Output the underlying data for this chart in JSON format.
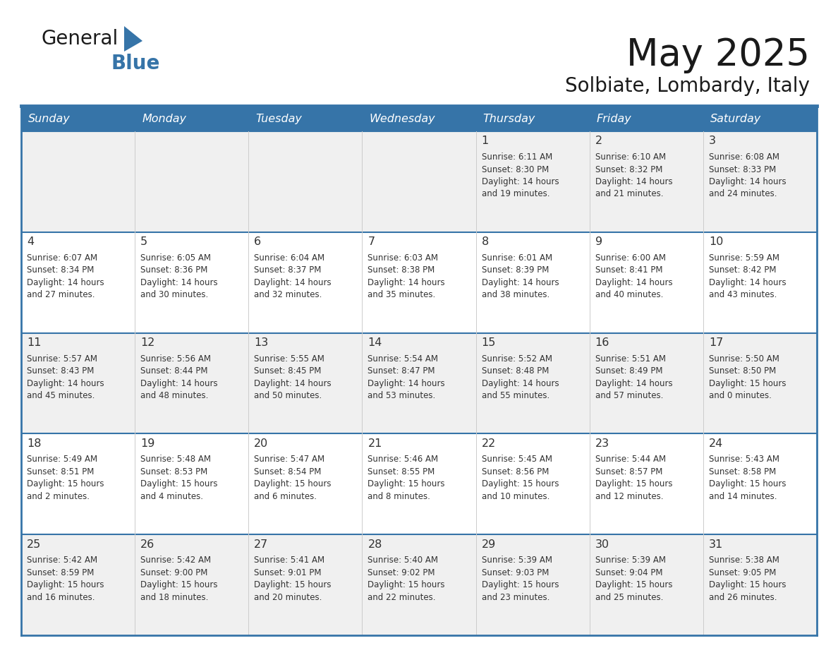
{
  "title": "May 2025",
  "subtitle": "Solbiate, Lombardy, Italy",
  "days_header": [
    "Sunday",
    "Monday",
    "Tuesday",
    "Wednesday",
    "Thursday",
    "Friday",
    "Saturday"
  ],
  "header_bg": "#3674a8",
  "header_text_color": "#FFFFFF",
  "border_color": "#3674a8",
  "text_color": "#333333",
  "row_colors": [
    "#F0F0F0",
    "#FFFFFF"
  ],
  "calendar": [
    [
      {
        "day": "",
        "text": ""
      },
      {
        "day": "",
        "text": ""
      },
      {
        "day": "",
        "text": ""
      },
      {
        "day": "",
        "text": ""
      },
      {
        "day": "1",
        "text": "Sunrise: 6:11 AM\nSunset: 8:30 PM\nDaylight: 14 hours\nand 19 minutes."
      },
      {
        "day": "2",
        "text": "Sunrise: 6:10 AM\nSunset: 8:32 PM\nDaylight: 14 hours\nand 21 minutes."
      },
      {
        "day": "3",
        "text": "Sunrise: 6:08 AM\nSunset: 8:33 PM\nDaylight: 14 hours\nand 24 minutes."
      }
    ],
    [
      {
        "day": "4",
        "text": "Sunrise: 6:07 AM\nSunset: 8:34 PM\nDaylight: 14 hours\nand 27 minutes."
      },
      {
        "day": "5",
        "text": "Sunrise: 6:05 AM\nSunset: 8:36 PM\nDaylight: 14 hours\nand 30 minutes."
      },
      {
        "day": "6",
        "text": "Sunrise: 6:04 AM\nSunset: 8:37 PM\nDaylight: 14 hours\nand 32 minutes."
      },
      {
        "day": "7",
        "text": "Sunrise: 6:03 AM\nSunset: 8:38 PM\nDaylight: 14 hours\nand 35 minutes."
      },
      {
        "day": "8",
        "text": "Sunrise: 6:01 AM\nSunset: 8:39 PM\nDaylight: 14 hours\nand 38 minutes."
      },
      {
        "day": "9",
        "text": "Sunrise: 6:00 AM\nSunset: 8:41 PM\nDaylight: 14 hours\nand 40 minutes."
      },
      {
        "day": "10",
        "text": "Sunrise: 5:59 AM\nSunset: 8:42 PM\nDaylight: 14 hours\nand 43 minutes."
      }
    ],
    [
      {
        "day": "11",
        "text": "Sunrise: 5:57 AM\nSunset: 8:43 PM\nDaylight: 14 hours\nand 45 minutes."
      },
      {
        "day": "12",
        "text": "Sunrise: 5:56 AM\nSunset: 8:44 PM\nDaylight: 14 hours\nand 48 minutes."
      },
      {
        "day": "13",
        "text": "Sunrise: 5:55 AM\nSunset: 8:45 PM\nDaylight: 14 hours\nand 50 minutes."
      },
      {
        "day": "14",
        "text": "Sunrise: 5:54 AM\nSunset: 8:47 PM\nDaylight: 14 hours\nand 53 minutes."
      },
      {
        "day": "15",
        "text": "Sunrise: 5:52 AM\nSunset: 8:48 PM\nDaylight: 14 hours\nand 55 minutes."
      },
      {
        "day": "16",
        "text": "Sunrise: 5:51 AM\nSunset: 8:49 PM\nDaylight: 14 hours\nand 57 minutes."
      },
      {
        "day": "17",
        "text": "Sunrise: 5:50 AM\nSunset: 8:50 PM\nDaylight: 15 hours\nand 0 minutes."
      }
    ],
    [
      {
        "day": "18",
        "text": "Sunrise: 5:49 AM\nSunset: 8:51 PM\nDaylight: 15 hours\nand 2 minutes."
      },
      {
        "day": "19",
        "text": "Sunrise: 5:48 AM\nSunset: 8:53 PM\nDaylight: 15 hours\nand 4 minutes."
      },
      {
        "day": "20",
        "text": "Sunrise: 5:47 AM\nSunset: 8:54 PM\nDaylight: 15 hours\nand 6 minutes."
      },
      {
        "day": "21",
        "text": "Sunrise: 5:46 AM\nSunset: 8:55 PM\nDaylight: 15 hours\nand 8 minutes."
      },
      {
        "day": "22",
        "text": "Sunrise: 5:45 AM\nSunset: 8:56 PM\nDaylight: 15 hours\nand 10 minutes."
      },
      {
        "day": "23",
        "text": "Sunrise: 5:44 AM\nSunset: 8:57 PM\nDaylight: 15 hours\nand 12 minutes."
      },
      {
        "day": "24",
        "text": "Sunrise: 5:43 AM\nSunset: 8:58 PM\nDaylight: 15 hours\nand 14 minutes."
      }
    ],
    [
      {
        "day": "25",
        "text": "Sunrise: 5:42 AM\nSunset: 8:59 PM\nDaylight: 15 hours\nand 16 minutes."
      },
      {
        "day": "26",
        "text": "Sunrise: 5:42 AM\nSunset: 9:00 PM\nDaylight: 15 hours\nand 18 minutes."
      },
      {
        "day": "27",
        "text": "Sunrise: 5:41 AM\nSunset: 9:01 PM\nDaylight: 15 hours\nand 20 minutes."
      },
      {
        "day": "28",
        "text": "Sunrise: 5:40 AM\nSunset: 9:02 PM\nDaylight: 15 hours\nand 22 minutes."
      },
      {
        "day": "29",
        "text": "Sunrise: 5:39 AM\nSunset: 9:03 PM\nDaylight: 15 hours\nand 23 minutes."
      },
      {
        "day": "30",
        "text": "Sunrise: 5:39 AM\nSunset: 9:04 PM\nDaylight: 15 hours\nand 25 minutes."
      },
      {
        "day": "31",
        "text": "Sunrise: 5:38 AM\nSunset: 9:05 PM\nDaylight: 15 hours\nand 26 minutes."
      }
    ]
  ]
}
